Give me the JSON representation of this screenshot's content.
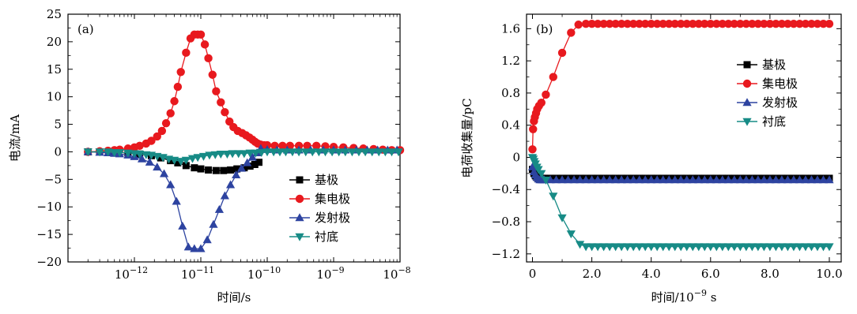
{
  "chart_data": [
    {
      "panel_label": "(a)",
      "type": "scatter",
      "xscale": "log",
      "xlabel": "时间/s",
      "ylabel": "电流/mA",
      "xlim": [
        1e-13,
        1e-08
      ],
      "ylim": [
        -20,
        25
      ],
      "x_ticks": [
        1e-12,
        1e-11,
        1e-10,
        1e-09,
        1e-08
      ],
      "x_tick_labels": [
        {
          "base": "10",
          "exp": "−12"
        },
        {
          "base": "10",
          "exp": "−11"
        },
        {
          "base": "10",
          "exp": "−10"
        },
        {
          "base": "10",
          "exp": "−9"
        },
        {
          "base": "10",
          "exp": "−8"
        }
      ],
      "y_ticks": [
        -20,
        -15,
        -10,
        -5,
        0,
        5,
        10,
        15,
        20,
        25
      ],
      "y_tick_labels": [
        "−20",
        "−15",
        "−10",
        "−5",
        "0",
        "5",
        "10",
        "15",
        "20",
        "25"
      ],
      "legend_position": "lower-right",
      "series": [
        {
          "name": "基极",
          "color": "#000000",
          "marker": "square",
          "x": [
            2e-13,
            3e-13,
            5e-13,
            8e-13,
            1.2e-12,
            1.8e-12,
            2.5e-12,
            3.5e-12,
            4.5e-12,
            6e-12,
            8e-12,
            1e-11,
            1.3e-11,
            1.7e-11,
            2.2e-11,
            2.8e-11,
            3.5e-11,
            4.5e-11,
            5.5e-11,
            6.5e-11,
            7.5e-11
          ],
          "y": [
            0,
            0,
            -0.1,
            -0.2,
            -0.4,
            -0.7,
            -1.1,
            -1.6,
            -2.0,
            -2.5,
            -2.9,
            -3.1,
            -3.3,
            -3.4,
            -3.4,
            -3.3,
            -3.1,
            -2.9,
            -2.6,
            -2.3,
            -1.9
          ]
        },
        {
          "name": "集电极",
          "color": "#e8191e",
          "marker": "circle",
          "x": [
            2e-13,
            3e-13,
            4e-13,
            5e-13,
            6e-13,
            8e-13,
            1e-12,
            1.2e-12,
            1.5e-12,
            1.8e-12,
            2.2e-12,
            2.6e-12,
            3e-12,
            3.5e-12,
            4e-12,
            4.5e-12,
            5e-12,
            6e-12,
            7e-12,
            8e-12,
            9e-12,
            1e-11,
            1.15e-11,
            1.3e-11,
            1.5e-11,
            1.7e-11,
            2e-11,
            2.3e-11,
            2.7e-11,
            3.1e-11,
            3.6e-11,
            4.2e-11,
            4.8e-11,
            5.4e-11,
            6e-11,
            6.6e-11,
            7.2e-11,
            8e-11,
            9e-11,
            1e-10,
            1.3e-10,
            1.7e-10,
            2.2e-10,
            3e-10,
            4e-10,
            5.5e-10,
            7.5e-10,
            1e-09,
            1.4e-09,
            2e-09,
            2.8e-09,
            4e-09,
            5.5e-09,
            7.5e-09,
            1e-08
          ],
          "y": [
            0,
            0.1,
            0.2,
            0.3,
            0.4,
            0.6,
            0.8,
            1.1,
            1.5,
            2.0,
            2.8,
            3.8,
            5.2,
            7.0,
            9.2,
            11.8,
            14.5,
            18.0,
            20.6,
            21.3,
            21.3,
            21.3,
            19.5,
            17.0,
            14.0,
            11.0,
            9.0,
            7.2,
            5.5,
            4.5,
            3.8,
            3.4,
            3.0,
            2.6,
            2.2,
            1.8,
            1.5,
            1.3,
            1.2,
            1.2,
            1.1,
            1.1,
            1.1,
            1.1,
            1.1,
            1.1,
            1.0,
            0.9,
            0.8,
            0.7,
            0.6,
            0.5,
            0.4,
            0.3,
            0.3
          ]
        },
        {
          "name": "发射极",
          "color": "#2d43a0",
          "marker": "triangle-up",
          "x": [
            2e-13,
            3e-13,
            4e-13,
            5e-13,
            6e-13,
            8e-13,
            1e-12,
            1.3e-12,
            1.7e-12,
            2.2e-12,
            2.8e-12,
            3.5e-12,
            4.3e-12,
            5.3e-12,
            6.5e-12,
            8e-12,
            1e-11,
            1.25e-11,
            1.55e-11,
            1.9e-11,
            2.3e-11,
            2.8e-11,
            3.4e-11,
            4.1e-11,
            5e-11,
            6e-11,
            7e-11,
            8e-11,
            1e-10,
            1.4e-10,
            2e-10,
            3e-10,
            4.5e-10,
            7e-10,
            1e-09,
            1.5e-09,
            2.2e-09,
            3.2e-09,
            4.6e-09,
            6.5e-09,
            9e-09
          ],
          "y": [
            0,
            -0.1,
            -0.2,
            -0.3,
            -0.4,
            -0.6,
            -0.9,
            -1.3,
            -1.9,
            -2.8,
            -4.0,
            -6.0,
            -9.0,
            -13.5,
            -17.3,
            -17.6,
            -17.6,
            -16.0,
            -13.2,
            -10.5,
            -8.0,
            -6.0,
            -4.2,
            -3.0,
            -2.0,
            -1.0,
            -0.2,
            0.6,
            0.4,
            0.3,
            0.3,
            0.3,
            0.3,
            0.3,
            0.3,
            0.3,
            0.3,
            0.3,
            0.3,
            0.3,
            0.3
          ]
        },
        {
          "name": "衬底",
          "color": "#178b86",
          "marker": "triangle-down",
          "x": [
            2e-13,
            3e-13,
            4e-13,
            5e-13,
            6e-13,
            8e-13,
            1e-12,
            1.2e-12,
            1.5e-12,
            1.8e-12,
            2.2e-12,
            2.7e-12,
            3.3e-12,
            4e-12,
            5e-12,
            6e-12,
            7.5e-12,
            9e-12,
            1.1e-11,
            1.35e-11,
            1.65e-11,
            2e-11,
            2.5e-11,
            3e-11,
            3.7e-11,
            4.5e-11,
            5.5e-11,
            6.7e-11,
            8.2e-11,
            1e-10,
            1.25e-10,
            1.55e-10,
            1.9e-10,
            2.4e-10,
            3e-10,
            3.8e-10,
            4.8e-10,
            6e-10,
            7.5e-10,
            9.5e-10,
            1.2e-09,
            1.5e-09,
            1.9e-09,
            2.4e-09,
            3e-09,
            3.8e-09,
            4.8e-09,
            6e-09,
            7.5e-09,
            9.5e-09
          ],
          "y": [
            0,
            0,
            0,
            -0.1,
            -0.1,
            -0.2,
            -0.3,
            -0.4,
            -0.5,
            -0.6,
            -0.8,
            -1.0,
            -1.3,
            -1.5,
            -1.7,
            -1.5,
            -1.2,
            -1.0,
            -0.8,
            -0.6,
            -0.5,
            -0.4,
            -0.4,
            -0.3,
            -0.3,
            -0.3,
            -0.2,
            -0.2,
            -0.1,
            0,
            0,
            0,
            0,
            0,
            0,
            0,
            0,
            0,
            0,
            0,
            0,
            0,
            0,
            0,
            0,
            0,
            0,
            0,
            0,
            0
          ]
        }
      ]
    },
    {
      "panel_label": "(b)",
      "type": "scatter",
      "xlabel": "时间/10",
      "xlabel_sup": "−9",
      "xlabel_tail": "s",
      "ylabel": "电荷收集量/pC",
      "xlim": [
        -0.2,
        10.4
      ],
      "ylim": [
        -1.3,
        1.78
      ],
      "x_ticks": [
        0,
        2,
        4,
        6,
        8,
        10
      ],
      "x_tick_labels": [
        "0",
        "2.0",
        "4.0",
        "6.0",
        "8.0",
        "10.0"
      ],
      "y_ticks": [
        -1.2,
        -0.8,
        -0.4,
        0,
        0.4,
        0.8,
        1.2,
        1.6
      ],
      "y_tick_labels": [
        "−1.2",
        "−0.8",
        "−0.4",
        "0",
        "0.4",
        "0.8",
        "1.2",
        "1.6"
      ],
      "legend_position": "upper-right",
      "series": [
        {
          "name": "基极",
          "color": "#000000",
          "marker": "square",
          "x": [
            0,
            0.05,
            0.1,
            0.15,
            0.2,
            0.25,
            0.3,
            0.35,
            0.4,
            0.6,
            0.8,
            1.0,
            1.2,
            1.4,
            1.6,
            1.8,
            2.0,
            2.2,
            2.4,
            2.6,
            2.8,
            3.0,
            3.2,
            3.4,
            3.6,
            3.8,
            4.0,
            4.2,
            4.4,
            4.6,
            4.8,
            5.0,
            5.2,
            5.4,
            5.6,
            5.8,
            6.0,
            6.2,
            6.4,
            6.6,
            6.8,
            7.0,
            7.2,
            7.4,
            7.6,
            7.8,
            8.0,
            8.2,
            8.4,
            8.6,
            8.8,
            9.0,
            9.2,
            9.4,
            9.6,
            9.8,
            10.0
          ],
          "y": [
            -0.15,
            -0.2,
            -0.23,
            -0.25,
            -0.26,
            -0.26,
            -0.26,
            -0.26,
            -0.26,
            -0.26,
            -0.26,
            -0.26,
            -0.26,
            -0.26,
            -0.26,
            -0.26,
            -0.26,
            -0.26,
            -0.26,
            -0.26,
            -0.26,
            -0.26,
            -0.26,
            -0.26,
            -0.26,
            -0.26,
            -0.26,
            -0.26,
            -0.26,
            -0.26,
            -0.26,
            -0.26,
            -0.26,
            -0.26,
            -0.26,
            -0.26,
            -0.26,
            -0.26,
            -0.26,
            -0.26,
            -0.26,
            -0.26,
            -0.26,
            -0.26,
            -0.26,
            -0.26,
            -0.26,
            -0.26,
            -0.26,
            -0.26,
            -0.26,
            -0.26,
            -0.26,
            -0.26,
            -0.26,
            -0.26,
            -0.26
          ]
        },
        {
          "name": "集电极",
          "color": "#e8191e",
          "marker": "circle",
          "x": [
            0,
            0.02,
            0.05,
            0.08,
            0.12,
            0.16,
            0.22,
            0.3,
            0.45,
            0.7,
            1.0,
            1.3,
            1.55,
            1.8,
            2.0,
            2.2,
            2.4,
            2.6,
            2.8,
            3.0,
            3.2,
            3.4,
            3.6,
            3.8,
            4.0,
            4.2,
            4.4,
            4.6,
            4.8,
            5.0,
            5.2,
            5.4,
            5.6,
            5.8,
            6.0,
            6.2,
            6.4,
            6.6,
            6.8,
            7.0,
            7.2,
            7.4,
            7.6,
            7.8,
            8.0,
            8.2,
            8.4,
            8.6,
            8.8,
            9.0,
            9.2,
            9.4,
            9.6,
            9.8,
            10.0
          ],
          "y": [
            0.1,
            0.35,
            0.45,
            0.5,
            0.55,
            0.6,
            0.64,
            0.68,
            0.78,
            1.0,
            1.3,
            1.55,
            1.65,
            1.66,
            1.66,
            1.66,
            1.66,
            1.66,
            1.66,
            1.66,
            1.66,
            1.66,
            1.66,
            1.66,
            1.66,
            1.66,
            1.66,
            1.66,
            1.66,
            1.66,
            1.66,
            1.66,
            1.66,
            1.66,
            1.66,
            1.66,
            1.66,
            1.66,
            1.66,
            1.66,
            1.66,
            1.66,
            1.66,
            1.66,
            1.66,
            1.66,
            1.66,
            1.66,
            1.66,
            1.66,
            1.66,
            1.66,
            1.66,
            1.66,
            1.66
          ]
        },
        {
          "name": "发射极",
          "color": "#2d43a0",
          "marker": "triangle-up",
          "x": [
            0,
            0.05,
            0.1,
            0.15,
            0.2,
            0.25,
            0.3,
            0.35,
            0.4,
            0.6,
            0.8,
            1.0,
            1.2,
            1.4,
            1.6,
            1.8,
            2.0,
            2.2,
            2.4,
            2.6,
            2.8,
            3.0,
            3.2,
            3.4,
            3.6,
            3.8,
            4.0,
            4.2,
            4.4,
            4.6,
            4.8,
            5.0,
            5.2,
            5.4,
            5.6,
            5.8,
            6.0,
            6.2,
            6.4,
            6.6,
            6.8,
            7.0,
            7.2,
            7.4,
            7.6,
            7.8,
            8.0,
            8.2,
            8.4,
            8.6,
            8.8,
            9.0,
            9.2,
            9.4,
            9.6,
            9.8,
            10.0
          ],
          "y": [
            -0.12,
            -0.18,
            -0.22,
            -0.25,
            -0.27,
            -0.28,
            -0.28,
            -0.28,
            -0.28,
            -0.28,
            -0.28,
            -0.28,
            -0.28,
            -0.28,
            -0.28,
            -0.28,
            -0.28,
            -0.28,
            -0.28,
            -0.28,
            -0.28,
            -0.28,
            -0.28,
            -0.28,
            -0.28,
            -0.28,
            -0.28,
            -0.28,
            -0.28,
            -0.28,
            -0.28,
            -0.28,
            -0.28,
            -0.28,
            -0.28,
            -0.28,
            -0.28,
            -0.28,
            -0.28,
            -0.28,
            -0.28,
            -0.28,
            -0.28,
            -0.28,
            -0.28,
            -0.28,
            -0.28,
            -0.28,
            -0.28,
            -0.28,
            -0.28,
            -0.28,
            -0.28,
            -0.28,
            -0.28,
            -0.28,
            -0.28
          ]
        },
        {
          "name": "衬底",
          "color": "#178b86",
          "marker": "triangle-down",
          "x": [
            0,
            0.03,
            0.06,
            0.1,
            0.15,
            0.2,
            0.3,
            0.45,
            0.7,
            1.0,
            1.3,
            1.6,
            1.8,
            2.0,
            2.2,
            2.4,
            2.6,
            2.8,
            3.0,
            3.2,
            3.4,
            3.6,
            3.8,
            4.0,
            4.2,
            4.4,
            4.6,
            4.8,
            5.0,
            5.2,
            5.4,
            5.6,
            5.8,
            6.0,
            6.2,
            6.4,
            6.6,
            6.8,
            7.0,
            7.2,
            7.4,
            7.6,
            7.8,
            8.0,
            8.2,
            8.4,
            8.6,
            8.8,
            9.0,
            9.2,
            9.4,
            9.6,
            9.8,
            10.0
          ],
          "y": [
            0,
            -0.02,
            -0.05,
            -0.08,
            -0.12,
            -0.15,
            -0.2,
            -0.28,
            -0.48,
            -0.75,
            -0.95,
            -1.08,
            -1.11,
            -1.11,
            -1.11,
            -1.11,
            -1.11,
            -1.11,
            -1.11,
            -1.11,
            -1.11,
            -1.11,
            -1.11,
            -1.11,
            -1.11,
            -1.11,
            -1.11,
            -1.11,
            -1.11,
            -1.11,
            -1.11,
            -1.11,
            -1.11,
            -1.11,
            -1.11,
            -1.11,
            -1.11,
            -1.11,
            -1.11,
            -1.11,
            -1.11,
            -1.11,
            -1.11,
            -1.11,
            -1.11,
            -1.11,
            -1.11,
            -1.11,
            -1.11,
            -1.11,
            -1.11,
            -1.11,
            -1.11,
            -1.11
          ]
        }
      ]
    }
  ]
}
